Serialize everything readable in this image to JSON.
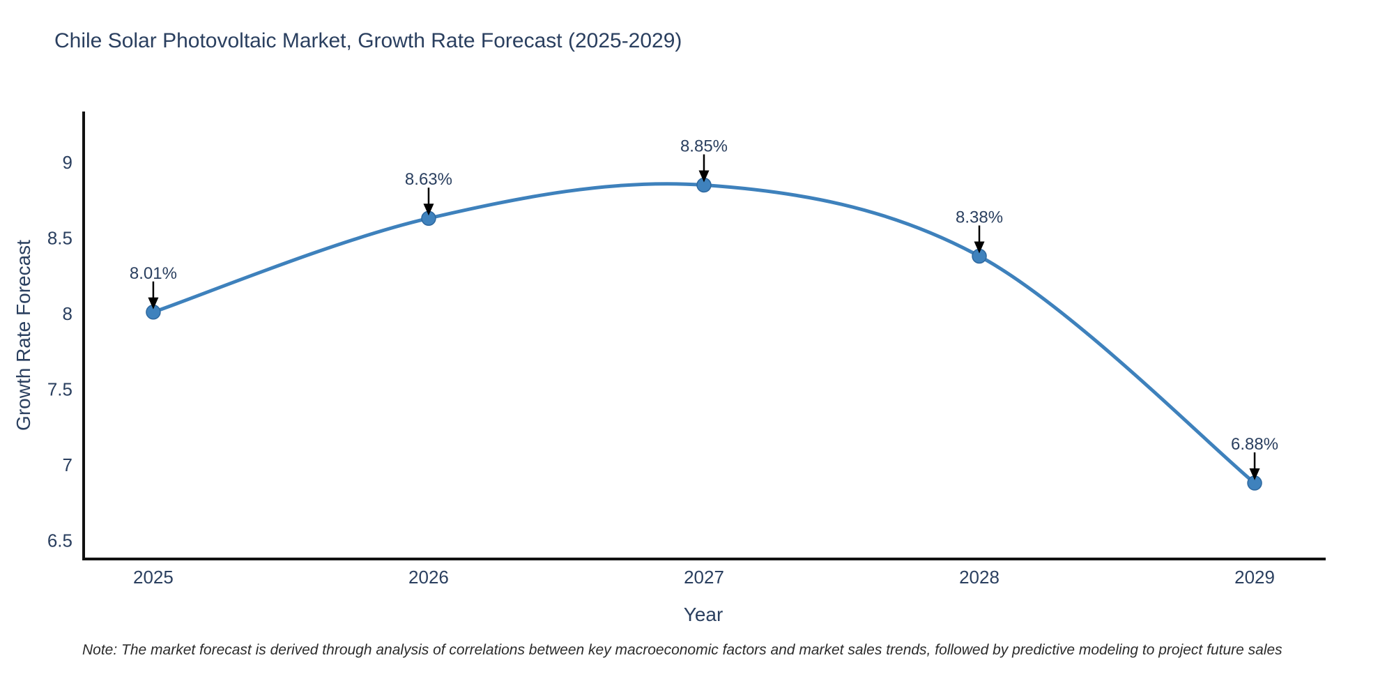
{
  "page": {
    "background": "#ffffff"
  },
  "footnote": "Note: The market forecast is derived through analysis of correlations between key macroeconomic factors and market sales trends, followed by predictive modeling to project future sales",
  "colors": {
    "line": "#3e81bc",
    "marker": "#3f82bd",
    "markerEdge": "#2e689f",
    "axis": "#111111",
    "text": "#2a3f5f",
    "arrow": "#000000",
    "note": "#2b2b2b"
  },
  "chart_data": {
    "type": "line",
    "title": "Chile Solar Photovoltaic Market, Growth Rate Forecast (2025-2029)",
    "xlabel": "Year",
    "ylabel": "Growth Rate Forecast",
    "x": [
      2025,
      2026,
      2027,
      2028,
      2029
    ],
    "series": [
      {
        "name": "Growth Rate Forecast",
        "values": [
          8.01,
          8.63,
          8.85,
          8.38,
          6.88
        ]
      }
    ],
    "point_labels": [
      "8.01%",
      "8.63%",
      "8.85%",
      "8.38%",
      "6.88%"
    ],
    "yticks": [
      6.5,
      7,
      7.5,
      8,
      8.5,
      9
    ],
    "xlim": [
      2024.742,
      2029.253
    ],
    "ylim": [
      6.378,
      9.336
    ],
    "line_shape": "spline",
    "markers": true,
    "grid": false,
    "legend_position": "none",
    "annotations": "value labels with downward arrows at each point"
  }
}
